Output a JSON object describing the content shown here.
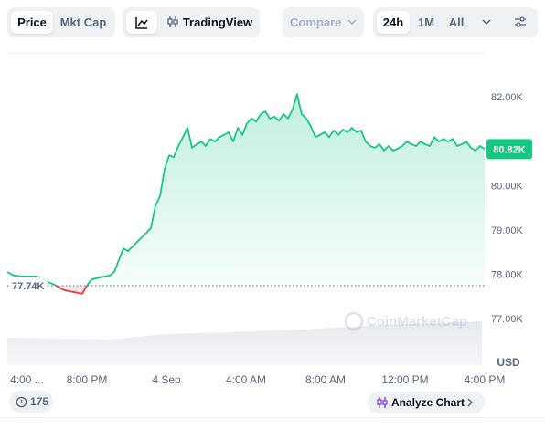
{
  "toolbar": {
    "price": "Price",
    "mkt_cap": "Mkt Cap",
    "trading_view": "TradingView",
    "compare": "Compare",
    "range_24h": "24h",
    "range_1m": "1M",
    "range_all": "All"
  },
  "footer": {
    "badge_count": "175",
    "analyze": "Analyze Chart"
  },
  "chart_data": {
    "type": "line",
    "watermark": "CoinMarketCap",
    "currency_label": "USD",
    "up_color": "#16c784",
    "down_color": "#ea3943",
    "baseline": {
      "value": 77740,
      "label": "77.74K"
    },
    "last_price": {
      "value": 80820,
      "label": "80.82K"
    },
    "xlim": [
      0,
      24
    ],
    "xticks": [
      {
        "value": 0,
        "label": "4:00 ..."
      },
      {
        "value": 4,
        "label": "8:00 PM"
      },
      {
        "value": 8,
        "label": "4 Sep"
      },
      {
        "value": 12,
        "label": "4:00 AM"
      },
      {
        "value": 16,
        "label": "8:00 AM"
      },
      {
        "value": 20,
        "label": "12:00 PM"
      },
      {
        "value": 24,
        "label": "4:00 PM"
      }
    ],
    "ylim": [
      75950,
      82990
    ],
    "yticks": [
      {
        "value": 77000,
        "label": "77.00K"
      },
      {
        "value": 78000,
        "label": "78.00K"
      },
      {
        "value": 79000,
        "label": "79.00K"
      },
      {
        "value": 80000,
        "label": "80.00K"
      },
      {
        "value": 82000,
        "label": "82.00K"
      }
    ],
    "x": [
      0,
      0.32,
      0.78,
      1.47,
      1.93,
      2.39,
      2.85,
      3.31,
      3.77,
      4.0,
      4.23,
      4.69,
      5.15,
      5.38,
      5.61,
      5.84,
      6.07,
      6.53,
      6.76,
      6.99,
      7.22,
      7.45,
      7.68,
      7.91,
      8.14,
      8.37,
      8.6,
      8.83,
      9.06,
      9.29,
      9.52,
      9.75,
      9.98,
      10.21,
      10.44,
      10.67,
      10.9,
      11.13,
      11.36,
      11.59,
      11.82,
      12.05,
      12.28,
      12.51,
      12.74,
      12.97,
      13.2,
      13.43,
      13.66,
      13.89,
      14.11,
      14.34,
      14.57,
      14.8,
      15.03,
      15.26,
      15.49,
      15.72,
      15.95,
      16.18,
      16.41,
      16.64,
      16.87,
      17.1,
      17.33,
      17.56,
      17.79,
      18.02,
      18.25,
      18.48,
      18.71,
      18.94,
      19.17,
      19.4,
      19.63,
      19.86,
      20.09,
      20.32,
      20.55,
      20.78,
      21.01,
      21.24,
      21.47,
      21.7,
      21.93,
      22.16,
      22.39,
      22.62,
      22.85,
      23.08,
      23.31,
      23.54,
      23.77,
      24
    ],
    "values": [
      78050,
      77970,
      77950,
      77950,
      77840,
      77760,
      77640,
      77600,
      77560,
      77740,
      77880,
      77930,
      77970,
      78050,
      78320,
      78580,
      78520,
      78730,
      78830,
      78930,
      79040,
      79550,
      79760,
      80370,
      80680,
      80640,
      80890,
      81090,
      81300,
      80850,
      80930,
      80990,
      80890,
      81050,
      80990,
      81090,
      81140,
      81200,
      80990,
      81300,
      81140,
      81400,
      81510,
      81440,
      81610,
      81670,
      81510,
      81550,
      81460,
      81610,
      81510,
      81710,
      82060,
      81610,
      81510,
      81340,
      81090,
      81140,
      81200,
      81090,
      81240,
      81140,
      81260,
      81200,
      81300,
      81200,
      81240,
      80990,
      80890,
      80850,
      80930,
      80790,
      80890,
      80790,
      80830,
      80890,
      80990,
      80930,
      80890,
      80990,
      80930,
      80890,
      81090,
      80990,
      81050,
      80990,
      81050,
      80890,
      80930,
      80990,
      80850,
      80790,
      80890,
      80820
    ]
  }
}
